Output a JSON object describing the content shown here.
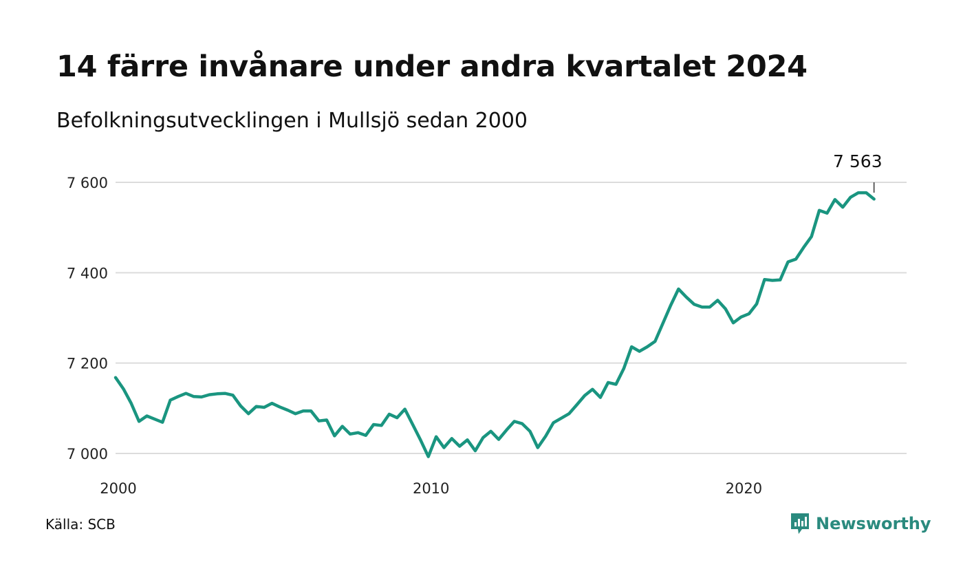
{
  "title": "14 färre invånare under andra kvartalet 2024",
  "subtitle": "Befolkningsutvecklingen i Mullsjö sedan 2000",
  "source": "Källa: SCB",
  "brand": {
    "name": "Newsworthy",
    "icon": "newsworthy-logo-icon",
    "color": "#2a8a7e"
  },
  "chart_data": {
    "type": "line",
    "title": "14 färre invånare under andra kvartalet 2024",
    "subtitle": "Befolkningsutvecklingen i Mullsjö sedan 2000",
    "xlabel": "",
    "ylabel": "",
    "ylim": [
      7000,
      7600
    ],
    "xlim": [
      2000,
      2025
    ],
    "yticks": [
      7000,
      7200,
      7400,
      7600
    ],
    "ytick_labels": [
      "7 000",
      "7 200",
      "7 400",
      "7 600"
    ],
    "xticks": [
      2000,
      2010,
      2020
    ],
    "xtick_labels": [
      "2000",
      "2010",
      "2020"
    ],
    "grid": "horizontal",
    "line_color": "#1a9580",
    "annotation": {
      "label": "7 563",
      "x": 2024.25,
      "y": 7563
    },
    "series": [
      {
        "x": [
          2000.0,
          2000.25,
          2000.5,
          2000.75,
          2001.0,
          2001.25,
          2001.5,
          2001.75,
          2002.0,
          2002.25,
          2002.5,
          2002.75,
          2003.0,
          2003.25,
          2003.5,
          2003.75,
          2004.0,
          2004.25,
          2004.5,
          2004.75,
          2005.0,
          2005.25,
          2005.5,
          2005.75,
          2006.0,
          2006.25,
          2006.5,
          2006.75,
          2007.0,
          2007.25,
          2007.5,
          2007.75,
          2008.0,
          2008.25,
          2008.5,
          2008.75,
          2009.0,
          2009.25,
          2009.5,
          2009.75,
          2010.0,
          2010.25,
          2010.5,
          2010.75,
          2011.0,
          2011.25,
          2011.5,
          2011.75,
          2012.0,
          2012.25,
          2012.5,
          2012.75,
          2013.0,
          2013.25,
          2013.5,
          2013.75,
          2014.0,
          2014.25,
          2014.5,
          2014.75,
          2015.0,
          2015.25,
          2015.5,
          2015.75,
          2016.0,
          2016.25,
          2016.5,
          2016.75,
          2017.0,
          2017.25,
          2017.5,
          2017.75,
          2018.0,
          2018.25,
          2018.5,
          2018.75,
          2019.0,
          2019.25,
          2019.5,
          2019.75,
          2020.0,
          2020.25,
          2020.5,
          2020.75,
          2021.0,
          2021.25,
          2021.5,
          2021.75,
          2022.0,
          2022.25,
          2022.5,
          2022.75,
          2023.0,
          2023.25,
          2023.5,
          2023.75,
          2024.0,
          2024.25
        ],
        "values": [
          7168,
          7143,
          7111,
          7071,
          7083,
          7076,
          7069,
          7118,
          7126,
          7133,
          7126,
          7125,
          7130,
          7132,
          7133,
          7129,
          7105,
          7088,
          7104,
          7102,
          7111,
          7103,
          7096,
          7088,
          7094,
          7094,
          7072,
          7074,
          7039,
          7060,
          7043,
          7046,
          7040,
          7064,
          7062,
          7087,
          7079,
          7098,
          7064,
          7030,
          6993,
          7037,
          7013,
          7033,
          7016,
          7030,
          7006,
          7035,
          7049,
          7031,
          7052,
          7071,
          7066,
          7049,
          7013,
          7038,
          7068,
          7078,
          7088,
          7108,
          7128,
          7142,
          7124,
          7157,
          7153,
          7188,
          7236,
          7226,
          7236,
          7248,
          7288,
          7328,
          7364,
          7346,
          7330,
          7324,
          7324,
          7339,
          7320,
          7289,
          7302,
          7309,
          7331,
          7385,
          7383,
          7384,
          7424,
          7430,
          7456,
          7480,
          7538,
          7532,
          7562,
          7545,
          7567,
          7577,
          7577,
          7563
        ]
      }
    ]
  }
}
